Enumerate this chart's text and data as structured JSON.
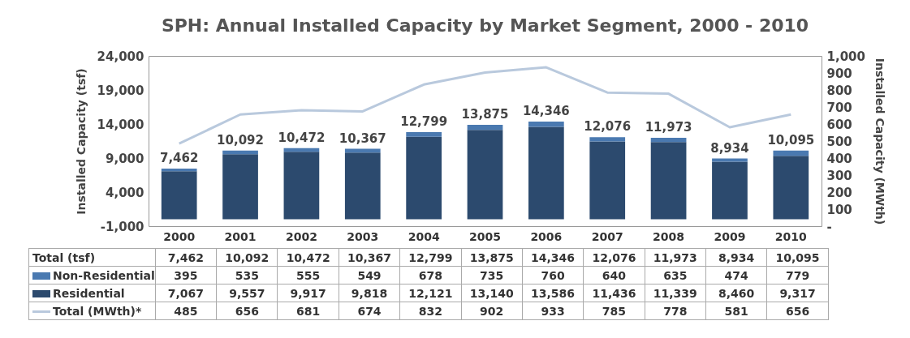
{
  "chart_data": {
    "type": "bar",
    "title": "SPH: Annual Installed Capacity by Market Segment, 2000 - 2010",
    "ylabel": "Installed Capacity (tsf)",
    "y2label": "Installed Capacity (MWth)",
    "categories": [
      "2000",
      "2001",
      "2002",
      "2003",
      "2004",
      "2005",
      "2006",
      "2007",
      "2008",
      "2009",
      "2010"
    ],
    "stacked": true,
    "series": [
      {
        "name": "Residential",
        "color": "#2c4a6e",
        "values": [
          7067,
          9557,
          9917,
          9818,
          12121,
          13140,
          13586,
          11436,
          11339,
          8460,
          9317
        ],
        "value_labels": [
          "7,067",
          "9,557",
          "9,917",
          "9,818",
          "12,121",
          "13,140",
          "13,586",
          "11,436",
          "11,339",
          "8,460",
          "9,317"
        ]
      },
      {
        "name": "Non-Residential",
        "color": "#4a79b0",
        "values": [
          395,
          535,
          555,
          549,
          678,
          735,
          760,
          640,
          635,
          474,
          779
        ],
        "value_labels": [
          "395",
          "535",
          "555",
          "549",
          "678",
          "735",
          "760",
          "640",
          "635",
          "474",
          "779"
        ]
      },
      {
        "name": "Total (MWth)*",
        "type": "line",
        "axis": "y2",
        "color": "#b9c9dd",
        "values": [
          485,
          656,
          681,
          674,
          832,
          902,
          933,
          785,
          778,
          581,
          656
        ],
        "value_labels": [
          "485",
          "656",
          "681",
          "674",
          "832",
          "902",
          "933",
          "785",
          "778",
          "581",
          "656"
        ]
      }
    ],
    "totals": [
      "7,462",
      "10,092",
      "10,472",
      "10,367",
      "12,799",
      "13,875",
      "14,346",
      "12,076",
      "11,973",
      "8,934",
      "10,095"
    ],
    "annotations": [
      "Total (tsf)"
    ],
    "legend": "bottom",
    "ylim": [
      -1000,
      24000
    ],
    "yticks": [
      {
        "value": -1000,
        "label": "-1,000"
      },
      {
        "value": 4000,
        "label": "4,000"
      },
      {
        "value": 9000,
        "label": "9,000"
      },
      {
        "value": 14000,
        "label": "14,000"
      },
      {
        "value": 19000,
        "label": "19,000"
      },
      {
        "value": 24000,
        "label": "24,000"
      }
    ],
    "y2lim": [
      0,
      1000
    ],
    "y2ticks": [
      {
        "value": 0,
        "label": "-"
      },
      100,
      200,
      300,
      400,
      500,
      600,
      700,
      800,
      900,
      {
        "value": 1000,
        "label": "1,000"
      }
    ],
    "grid": false
  }
}
